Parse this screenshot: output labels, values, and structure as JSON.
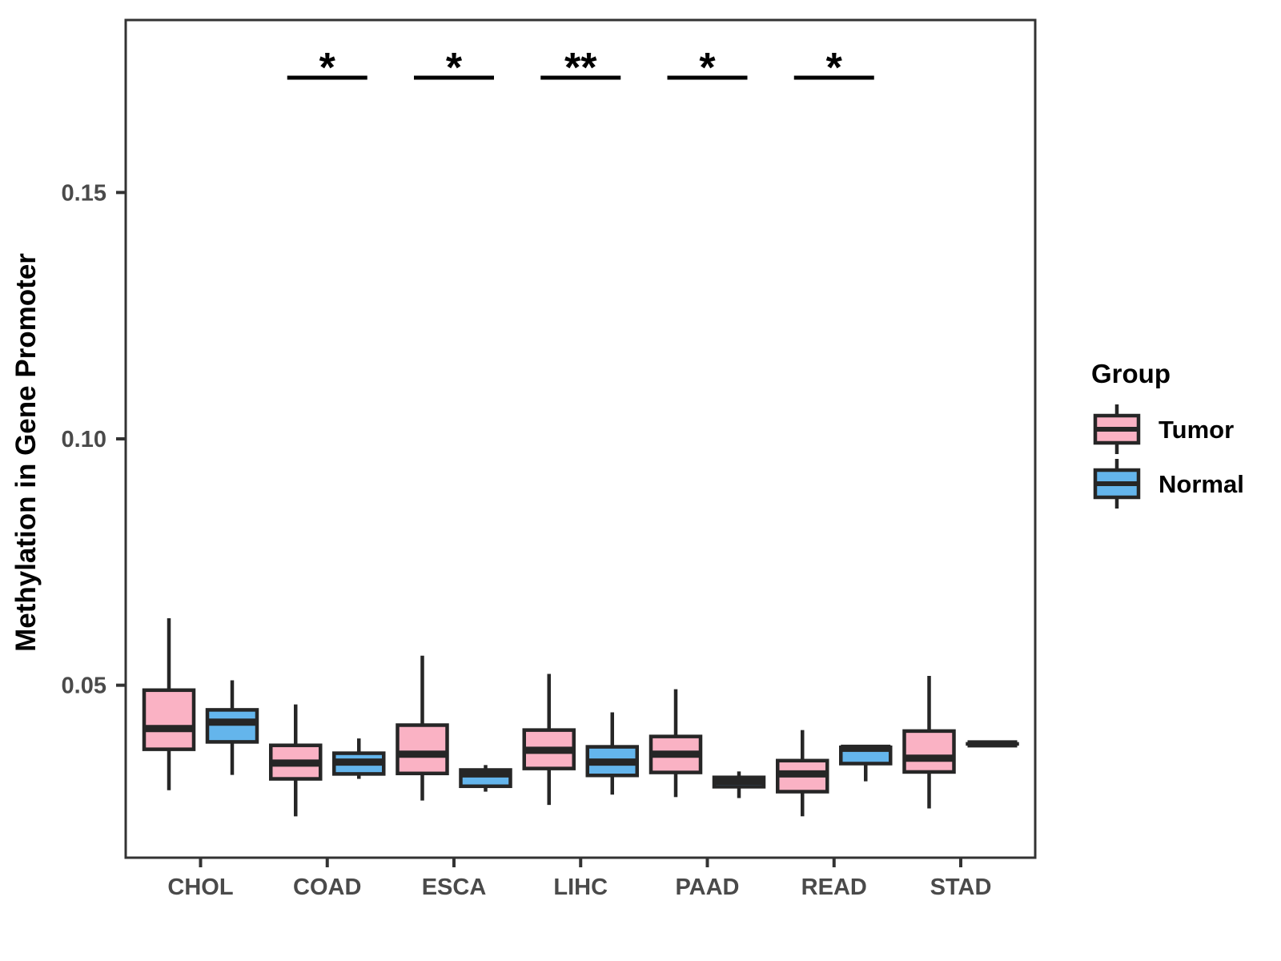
{
  "chart_data": {
    "type": "boxplot",
    "title": "",
    "xlabel": "",
    "ylabel": "Methylation in Gene Promoter",
    "categories": [
      "CHOL",
      "COAD",
      "ESCA",
      "LIHC",
      "PAAD",
      "READ",
      "STAD"
    ],
    "yticks": [
      0.05,
      0.1,
      0.15
    ],
    "ytick_labels": [
      "0.05",
      "0.10",
      "0.15"
    ],
    "ylim": [
      0.015,
      0.185
    ],
    "grid": false,
    "panel_border": true,
    "legend": {
      "title": "Group",
      "position": "right",
      "entries": [
        {
          "label": "Tumor",
          "color": "#FAB2C4"
        },
        {
          "label": "Normal",
          "color": "#64B5EC"
        }
      ]
    },
    "series": [
      {
        "name": "Tumor",
        "color": "#FAB2C4",
        "boxes": [
          {
            "category": "CHOL",
            "whislo": 0.0287,
            "q1": 0.037,
            "med": 0.0412,
            "q3": 0.049,
            "whishi": 0.0636
          },
          {
            "category": "COAD",
            "whislo": 0.0234,
            "q1": 0.031,
            "med": 0.0342,
            "q3": 0.0378,
            "whishi": 0.0461
          },
          {
            "category": "ESCA",
            "whislo": 0.0266,
            "q1": 0.0321,
            "med": 0.036,
            "q3": 0.0419,
            "whishi": 0.056
          },
          {
            "category": "LIHC",
            "whislo": 0.0257,
            "q1": 0.0331,
            "med": 0.0368,
            "q3": 0.0409,
            "whishi": 0.0523
          },
          {
            "category": "PAAD",
            "whislo": 0.0273,
            "q1": 0.0323,
            "med": 0.036,
            "q3": 0.0396,
            "whishi": 0.0492
          },
          {
            "category": "READ",
            "whislo": 0.0234,
            "q1": 0.0284,
            "med": 0.032,
            "q3": 0.0347,
            "whishi": 0.0409
          },
          {
            "category": "STAD",
            "whislo": 0.025,
            "q1": 0.0324,
            "med": 0.0352,
            "q3": 0.0407,
            "whishi": 0.0519
          }
        ]
      },
      {
        "name": "Normal",
        "color": "#64B5EC",
        "boxes": [
          {
            "category": "CHOL",
            "whislo": 0.0318,
            "q1": 0.0385,
            "med": 0.0425,
            "q3": 0.045,
            "whishi": 0.051
          },
          {
            "category": "COAD",
            "whislo": 0.031,
            "q1": 0.032,
            "med": 0.0344,
            "q3": 0.0362,
            "whishi": 0.0392
          },
          {
            "category": "ESCA",
            "whislo": 0.0284,
            "q1": 0.0295,
            "med": 0.032,
            "q3": 0.0328,
            "whishi": 0.0338
          },
          {
            "category": "LIHC",
            "whislo": 0.0278,
            "q1": 0.0317,
            "med": 0.0344,
            "q3": 0.0375,
            "whishi": 0.0445
          },
          {
            "category": "PAAD",
            "whislo": 0.0271,
            "q1": 0.0294,
            "med": 0.0305,
            "q3": 0.0313,
            "whishi": 0.0325
          },
          {
            "category": "READ",
            "whislo": 0.0305,
            "q1": 0.0341,
            "med": 0.0372,
            "q3": 0.0374,
            "whishi": 0.0374
          },
          {
            "category": "STAD",
            "whislo": 0.0381,
            "q1": 0.0381,
            "med": 0.0381,
            "q3": 0.0381,
            "whishi": 0.0381
          }
        ]
      }
    ],
    "significance": [
      {
        "category": "COAD",
        "label": "*"
      },
      {
        "category": "ESCA",
        "label": "*"
      },
      {
        "category": "LIHC",
        "label": "**"
      },
      {
        "category": "PAAD",
        "label": "*"
      },
      {
        "category": "READ",
        "label": "*"
      }
    ]
  },
  "styles": {
    "background": "#FFFFFF",
    "stroke_color": "#262626",
    "axis_color": "#333333",
    "tick_label_color": "#4A4A4A",
    "axis_title_color": "#000000",
    "legend_text_color": "#000000",
    "sig_color": "#000000"
  }
}
